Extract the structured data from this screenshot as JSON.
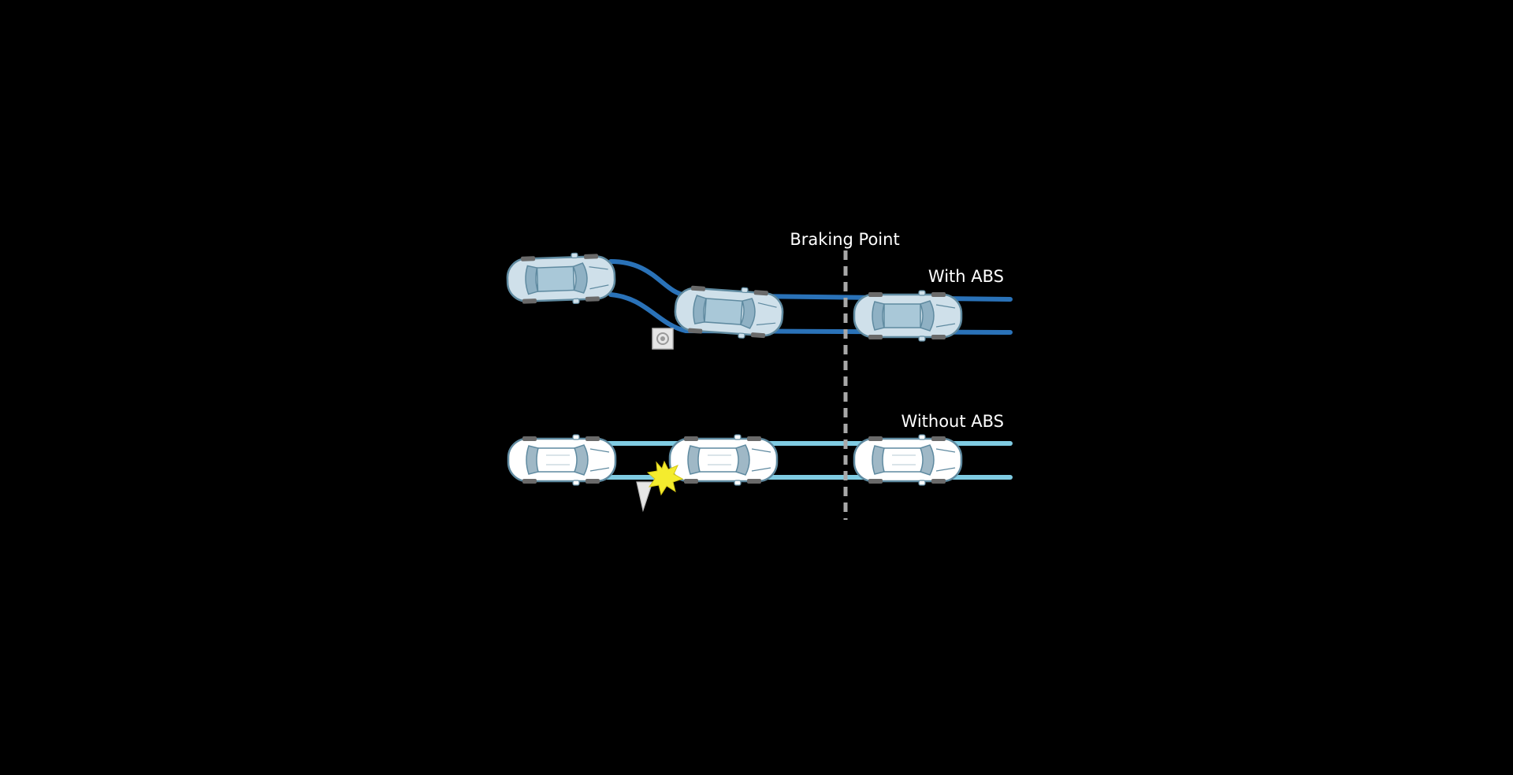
{
  "diagram": {
    "braking_point_label": "Braking Point",
    "with_abs_label": "With ABS",
    "without_abs_label": "Without ABS",
    "colors": {
      "background": "#000000",
      "with_abs_track": "#2a72b8",
      "without_abs_track": "#7fcbe2",
      "braking_line": "#a8a8a8",
      "car_body": "#ffffff",
      "car_glass_with_abs": "#a9c8d8",
      "car_outline": "#5f8aa0",
      "collision_star": "#f4ec2e",
      "obstacle": "#e6e6e6"
    },
    "icons": [
      "car-icon",
      "collision-star-icon",
      "obstacle-icon",
      "traffic-cone-icon"
    ]
  }
}
